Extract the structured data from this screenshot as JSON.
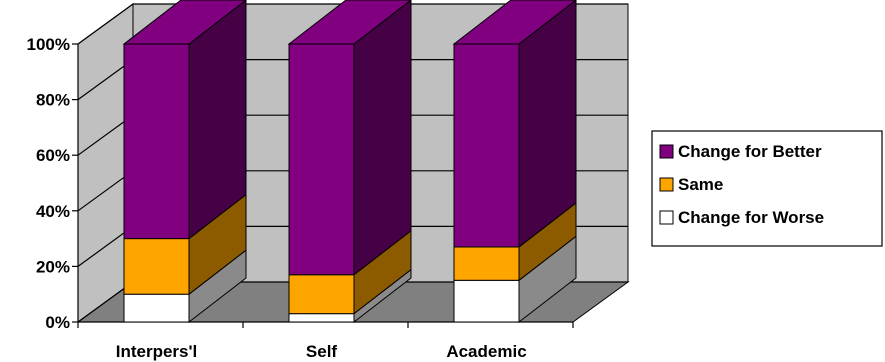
{
  "chart_data": {
    "type": "bar",
    "stacked": "percent",
    "three_d": true,
    "categories": [
      "Interpers'l",
      "Self",
      "Academic"
    ],
    "series": [
      {
        "name": "Change for Worse",
        "values": [
          10,
          3,
          15
        ],
        "color": "#ffffff"
      },
      {
        "name": "Same",
        "values": [
          20,
          14,
          12
        ],
        "color": "#ffa500"
      },
      {
        "name": "Change for Better",
        "values": [
          70,
          83,
          73
        ],
        "color": "#800080"
      }
    ],
    "y_ticks": [
      "0%",
      "20%",
      "40%",
      "60%",
      "80%",
      "100%"
    ],
    "ylim": [
      0,
      100
    ],
    "grid": true,
    "legend_position": "right",
    "colors": {
      "wall": "#c0c0c0",
      "floor": "#808080",
      "gridline": "#000000"
    }
  }
}
